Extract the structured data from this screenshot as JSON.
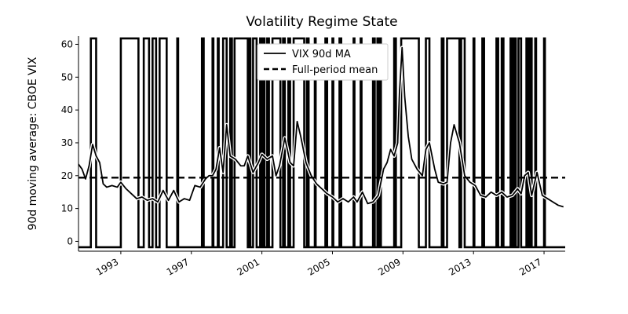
{
  "chart_data": {
    "type": "line",
    "title": "Volatility Regime State",
    "xlabel": "",
    "ylabel": "90d moving average: CBOE VIX",
    "xlim": [
      1990.6,
      2018.2
    ],
    "ylim": [
      -3,
      62.5
    ],
    "x_ticks": [
      1993,
      1997,
      2001,
      2005,
      2009,
      2013,
      2017
    ],
    "x_tick_labels": [
      "1993",
      "1997",
      "2001",
      "2005",
      "2009",
      "2013",
      "2017"
    ],
    "y_ticks": [
      0,
      10,
      20,
      30,
      40,
      50,
      60
    ],
    "y_tick_labels": [
      "0",
      "10",
      "20",
      "30",
      "40",
      "50",
      "60"
    ],
    "grid": false,
    "legend": {
      "placement": "top-center",
      "entries": [
        "VIX 90d MA",
        "Full-period mean"
      ]
    },
    "series": [
      {
        "name": "VIX 90d MA",
        "style": "solid",
        "x": [
          1990.6,
          1990.8,
          1991.0,
          1991.2,
          1991.4,
          1991.6,
          1991.8,
          1992.0,
          1992.2,
          1992.5,
          1992.8,
          1993.0,
          1993.3,
          1993.6,
          1993.9,
          1994.2,
          1994.5,
          1994.8,
          1995.1,
          1995.4,
          1995.7,
          1996.0,
          1996.3,
          1996.6,
          1996.9,
          1997.2,
          1997.5,
          1997.8,
          1998.0,
          1998.2,
          1998.4,
          1998.6,
          1998.8,
          1999.0,
          1999.2,
          1999.5,
          1999.8,
          2000.0,
          2000.2,
          2000.5,
          2000.8,
          2001.0,
          2001.3,
          2001.6,
          2001.8,
          2002.0,
          2002.3,
          2002.6,
          2002.8,
          2003.0,
          2003.2,
          2003.5,
          2003.8,
          2004.1,
          2004.4,
          2004.7,
          2005.0,
          2005.3,
          2005.6,
          2005.9,
          2006.2,
          2006.4,
          2006.7,
          2007.0,
          2007.3,
          2007.6,
          2007.9,
          2008.1,
          2008.3,
          2008.5,
          2008.7,
          2008.8,
          2008.95,
          2009.1,
          2009.3,
          2009.5,
          2009.8,
          2010.1,
          2010.3,
          2010.5,
          2010.8,
          2011.0,
          2011.3,
          2011.5,
          2011.7,
          2011.9,
          2012.2,
          2012.5,
          2012.8,
          2013.1,
          2013.4,
          2013.7,
          2014.0,
          2014.3,
          2014.6,
          2014.9,
          2015.2,
          2015.5,
          2015.7,
          2015.9,
          2016.1,
          2016.3,
          2016.6,
          2016.9,
          2017.2,
          2017.5,
          2017.8,
          2018.1
        ],
        "values": [
          23.5,
          22,
          19,
          23,
          29.5,
          26,
          24,
          17.5,
          16.5,
          17,
          16.5,
          18,
          16,
          14.5,
          13,
          13.5,
          12.5,
          13,
          12,
          15.5,
          12.5,
          15.5,
          12,
          13,
          12.5,
          17,
          16.5,
          19,
          20,
          20,
          22,
          28.5,
          21,
          35.5,
          26,
          25,
          23,
          23,
          26,
          21,
          24,
          26.5,
          25,
          26,
          20,
          23,
          31.5,
          24,
          23,
          36.5,
          32,
          24,
          20,
          17.5,
          16,
          14.5,
          13.5,
          12,
          13,
          12,
          13.5,
          12,
          15,
          11.5,
          12,
          14,
          22,
          24,
          28,
          26,
          30,
          45,
          59,
          44,
          32,
          25,
          22,
          20,
          28,
          30,
          22,
          18,
          17.5,
          18,
          30,
          35.5,
          30,
          20,
          18,
          17,
          14,
          13.5,
          15,
          14,
          15,
          13.5,
          14,
          16,
          14.5,
          20,
          21,
          14,
          21,
          14,
          13,
          12,
          11,
          10.5
        ]
      },
      {
        "name": "Full-period mean",
        "style": "dashed",
        "x": [
          1990.6,
          2018.2
        ],
        "values": [
          19.4,
          19.4
        ]
      }
    ],
    "regime_state": {
      "style": "step",
      "low_value": -1.8,
      "high_value": 61.8,
      "high_intervals": [
        [
          1991.3,
          1991.6
        ],
        [
          1993.0,
          1994.0
        ],
        [
          1994.3,
          1994.6
        ],
        [
          1994.8,
          1995.0
        ],
        [
          1995.2,
          1995.6
        ],
        [
          1996.2,
          1996.25
        ],
        [
          1997.6,
          1997.7
        ],
        [
          1998.2,
          1998.25
        ],
        [
          1998.5,
          1998.55
        ],
        [
          1998.8,
          1999.0
        ],
        [
          1999.2,
          1999.3
        ],
        [
          1999.45,
          2000.2
        ],
        [
          2000.3,
          2000.35
        ],
        [
          2000.5,
          2000.7
        ],
        [
          2000.9,
          2001.0
        ],
        [
          2001.1,
          2001.15
        ],
        [
          2001.3,
          2001.4
        ],
        [
          2001.6,
          2002.05
        ],
        [
          2002.2,
          2002.3
        ],
        [
          2002.5,
          2002.6
        ],
        [
          2002.8,
          2003.4
        ],
        [
          2003.55,
          2003.65
        ],
        [
          2004.0,
          2004.05
        ],
        [
          2004.6,
          2004.7
        ],
        [
          2005.0,
          2005.05
        ],
        [
          2005.4,
          2005.5
        ],
        [
          2006.2,
          2006.25
        ],
        [
          2006.6,
          2006.65
        ],
        [
          2007.3,
          2007.4
        ],
        [
          2007.55,
          2007.65
        ],
        [
          2007.7,
          2007.75
        ],
        [
          2008.5,
          2008.6
        ],
        [
          2008.9,
          2009.9
        ],
        [
          2010.3,
          2010.5
        ],
        [
          2011.2,
          2011.3
        ],
        [
          2011.5,
          2012.2
        ],
        [
          2012.3,
          2012.5
        ],
        [
          2013.0,
          2013.05
        ],
        [
          2013.5,
          2013.6
        ],
        [
          2014.3,
          2014.4
        ],
        [
          2014.6,
          2014.7
        ],
        [
          2015.1,
          2015.2
        ],
        [
          2015.3,
          2015.4
        ],
        [
          2015.55,
          2015.7
        ],
        [
          2016.0,
          2016.1
        ],
        [
          2016.2,
          2016.3
        ],
        [
          2016.5,
          2016.55
        ],
        [
          2017.0,
          2017.05
        ]
      ]
    }
  }
}
